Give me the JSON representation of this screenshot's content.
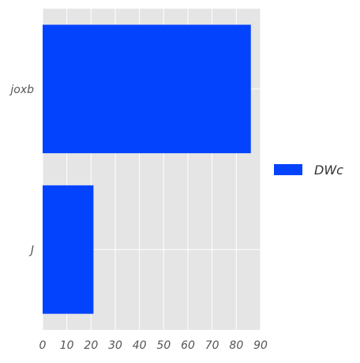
{
  "chart_data": {
    "type": "bar",
    "orientation": "horizontal",
    "categories": [
      "joxb",
      "J"
    ],
    "series": [
      {
        "name": "DWc",
        "values": [
          86,
          21
        ],
        "color": "#0343fe"
      }
    ],
    "xlim": [
      0,
      90
    ],
    "xticks": [
      0,
      10,
      20,
      30,
      40,
      50,
      60,
      70,
      80,
      90
    ],
    "grid": true,
    "background": "#e5e5e5",
    "grid_color": "#ffffff",
    "legend": {
      "position": "right"
    }
  }
}
